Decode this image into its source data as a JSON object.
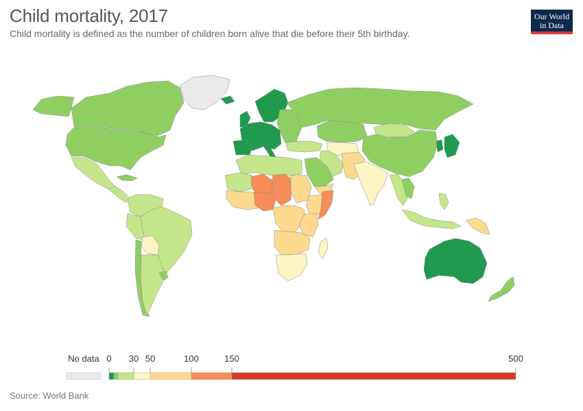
{
  "title": "Child mortality, 2017",
  "subtitle": "Child mortality is defined as the number of children born alive that die before their 5th birthday.",
  "logo": {
    "line1": "Our World",
    "line2": "in Data"
  },
  "source": "Source: World Bank",
  "colors": {
    "no_data": "#eaeaea",
    "deep_green": "#1f9a4f",
    "green": "#8fcf62",
    "light_green": "#c5e58a",
    "light_yellow": "#fbf5c4",
    "yellow": "#fbd98f",
    "orange": "#f78c58",
    "red": "#d8392a",
    "logo_bg": "#0c2a4d",
    "logo_accent": "#d73c3c"
  },
  "legend": {
    "no_data_label": "No data",
    "ticks": [
      "0",
      "30",
      "50",
      "100",
      "150",
      "500"
    ],
    "bins": [
      {
        "from": 0,
        "to": 5,
        "color": "#1f9a4f"
      },
      {
        "from": 5,
        "to": 10,
        "color": "#8fcf62"
      },
      {
        "from": 10,
        "to": 30,
        "color": "#c5e58a"
      },
      {
        "from": 30,
        "to": 50,
        "color": "#fbf5c4"
      },
      {
        "from": 50,
        "to": 100,
        "color": "#fbd98f"
      },
      {
        "from": 100,
        "to": 150,
        "color": "#f78c58"
      },
      {
        "from": 150,
        "to": 500,
        "color": "#d8392a"
      }
    ]
  },
  "regions": [
    {
      "name": "greenland",
      "bin": "no_data"
    },
    {
      "name": "canada",
      "bin": "green"
    },
    {
      "name": "alaska",
      "bin": "green"
    },
    {
      "name": "united-states",
      "bin": "green"
    },
    {
      "name": "mexico",
      "bin": "light_green"
    },
    {
      "name": "central-america",
      "bin": "light_green"
    },
    {
      "name": "cuba",
      "bin": "green"
    },
    {
      "name": "colombia-venezuela",
      "bin": "light_green"
    },
    {
      "name": "brazil",
      "bin": "light_green"
    },
    {
      "name": "peru",
      "bin": "light_green"
    },
    {
      "name": "bolivia",
      "bin": "light_yellow"
    },
    {
      "name": "chile",
      "bin": "green"
    },
    {
      "name": "argentina",
      "bin": "light_green"
    },
    {
      "name": "uruguay",
      "bin": "green"
    },
    {
      "name": "iceland",
      "bin": "deep_green"
    },
    {
      "name": "scandinavia",
      "bin": "deep_green"
    },
    {
      "name": "western-europe",
      "bin": "deep_green"
    },
    {
      "name": "united-kingdom",
      "bin": "deep_green"
    },
    {
      "name": "iberia",
      "bin": "deep_green"
    },
    {
      "name": "italy",
      "bin": "deep_green"
    },
    {
      "name": "eastern-europe",
      "bin": "green"
    },
    {
      "name": "russia",
      "bin": "green"
    },
    {
      "name": "turkey",
      "bin": "light_green"
    },
    {
      "name": "kazakhstan",
      "bin": "green"
    },
    {
      "name": "mongolia",
      "bin": "light_green"
    },
    {
      "name": "china",
      "bin": "green"
    },
    {
      "name": "korea",
      "bin": "deep_green"
    },
    {
      "name": "japan",
      "bin": "deep_green"
    },
    {
      "name": "central-asia",
      "bin": "light_yellow"
    },
    {
      "name": "iran",
      "bin": "light_green"
    },
    {
      "name": "afghanistan-pakistan",
      "bin": "yellow"
    },
    {
      "name": "india",
      "bin": "light_yellow"
    },
    {
      "name": "saudi-arabia",
      "bin": "green"
    },
    {
      "name": "yemen",
      "bin": "yellow"
    },
    {
      "name": "southeast-asia",
      "bin": "light_green"
    },
    {
      "name": "thailand",
      "bin": "green"
    },
    {
      "name": "indonesia",
      "bin": "light_green"
    },
    {
      "name": "papua-new-guinea",
      "bin": "yellow"
    },
    {
      "name": "philippines",
      "bin": "light_green"
    },
    {
      "name": "australia",
      "bin": "deep_green"
    },
    {
      "name": "new-zealand",
      "bin": "green"
    },
    {
      "name": "north-africa",
      "bin": "light_green"
    },
    {
      "name": "mauritania-mali",
      "bin": "light_green"
    },
    {
      "name": "mali",
      "bin": "orange"
    },
    {
      "name": "niger",
      "bin": "yellow"
    },
    {
      "name": "chad",
      "bin": "orange"
    },
    {
      "name": "sudan",
      "bin": "yellow"
    },
    {
      "name": "west-africa",
      "bin": "yellow"
    },
    {
      "name": "nigeria",
      "bin": "orange"
    },
    {
      "name": "ethiopia",
      "bin": "yellow"
    },
    {
      "name": "somalia",
      "bin": "orange"
    },
    {
      "name": "central-africa",
      "bin": "yellow"
    },
    {
      "name": "east-africa",
      "bin": "yellow"
    },
    {
      "name": "angola-zambia",
      "bin": "yellow"
    },
    {
      "name": "southern-africa",
      "bin": "light_yellow"
    },
    {
      "name": "madagascar",
      "bin": "light_yellow"
    }
  ]
}
